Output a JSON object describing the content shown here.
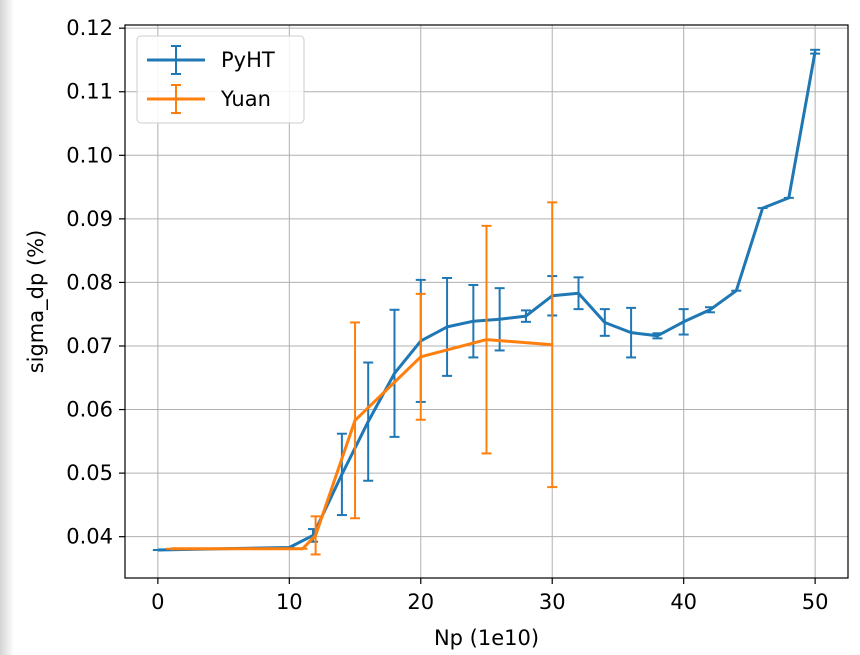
{
  "chart_data": {
    "type": "line",
    "title": "",
    "xlabel": "Np (1e10)",
    "ylabel": "sigma_dp (%)",
    "xlim": [
      -2.5,
      52.5
    ],
    "ylim": [
      0.0335,
      0.1205
    ],
    "xticks": [
      0,
      10,
      20,
      30,
      40,
      50
    ],
    "yticks": [
      0.04,
      0.05,
      0.06,
      0.07,
      0.08,
      0.09,
      0.1,
      0.11,
      0.12
    ],
    "xtick_labels": [
      "0",
      "10",
      "20",
      "30",
      "40",
      "50"
    ],
    "ytick_labels": [
      "0.04",
      "0.05",
      "0.06",
      "0.07",
      "0.08",
      "0.09",
      "0.10",
      "0.11",
      "0.12"
    ],
    "grid": true,
    "legend_position": "top-left",
    "series": [
      {
        "name": "PyHT",
        "color": "#1f77b4",
        "x": [
          0,
          10,
          11.8,
          14,
          16,
          18,
          20,
          22,
          24,
          26,
          28,
          30,
          32,
          34,
          36,
          38,
          40,
          42,
          44,
          46,
          48,
          50
        ],
        "y": [
          0.0379,
          0.0383,
          0.0402,
          0.0498,
          0.0581,
          0.0657,
          0.0708,
          0.073,
          0.0739,
          0.0742,
          0.0747,
          0.0779,
          0.0783,
          0.0737,
          0.0721,
          0.0716,
          0.0738,
          0.0757,
          0.0787,
          0.0917,
          0.0933,
          0.1163
        ],
        "err": [
          0,
          0,
          0.001,
          0.0064,
          0.0093,
          0.01,
          0.0096,
          0.0077,
          0.0057,
          0.0049,
          0.0009,
          0.0031,
          0.0025,
          0.0021,
          0.0039,
          0.0004,
          0.002,
          0.0004,
          0,
          0,
          0,
          0.0003
        ]
      },
      {
        "name": "Yuan",
        "color": "#ff7f0e",
        "x": [
          1,
          11,
          12,
          15,
          20,
          25,
          30
        ],
        "y": [
          0.0381,
          0.0381,
          0.0402,
          0.0583,
          0.0683,
          0.071,
          0.0702
        ],
        "err": [
          0,
          0,
          0.003,
          0.0154,
          0.0099,
          0.0179,
          0.0224
        ]
      }
    ]
  }
}
